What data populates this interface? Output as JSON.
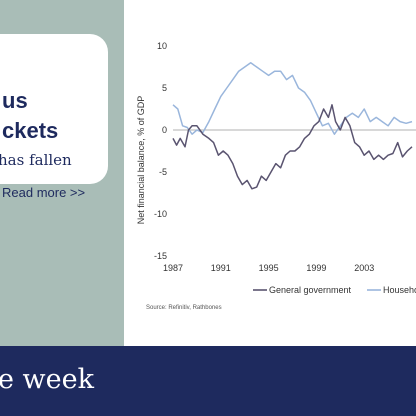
{
  "card": {
    "line1": "us",
    "line2": "ckets",
    "line3": "has fallen",
    "read_more": "Read more >>"
  },
  "banner": {
    "title": "e week"
  },
  "source": "Source: Refinitiv, Rathbones",
  "colors": {
    "background": "#a9bdb7",
    "navy": "#1e2a5e",
    "government": "#5a5470",
    "households": "#9ab6dc"
  },
  "chart_data": {
    "type": "line",
    "title": "",
    "xlabel": "",
    "ylabel": "Net financial balance, % of GDP",
    "ylim": [
      -15,
      10
    ],
    "xlim": [
      1987,
      2008
    ],
    "yticks": [
      10,
      5,
      0,
      -5,
      -10,
      -15
    ],
    "xticks": [
      1987,
      1991,
      1995,
      1999,
      2003
    ],
    "grid": false,
    "legend_position": "bottom",
    "series": [
      {
        "name": "General government",
        "color": "#5a5470",
        "x": [
          1987,
          1987.3,
          1987.6,
          1988,
          1988.3,
          1988.6,
          1989,
          1989.5,
          1990,
          1990.4,
          1990.8,
          1991.2,
          1991.6,
          1992,
          1992.4,
          1992.8,
          1993.2,
          1993.6,
          1994,
          1994.4,
          1994.8,
          1995.2,
          1995.6,
          1996,
          1996.4,
          1996.8,
          1997.2,
          1997.6,
          1998,
          1998.4,
          1998.8,
          1999.2,
          1999.6,
          2000,
          2000.3,
          2000.6,
          2001,
          2001.4,
          2001.8,
          2002.2,
          2002.6,
          2003,
          2003.4,
          2003.8,
          2004.2,
          2004.6,
          2005,
          2005.4,
          2005.8,
          2006.2,
          2006.6,
          2007
        ],
        "y": [
          -1,
          -1.8,
          -1,
          -2,
          0,
          0.5,
          0.5,
          -0.5,
          -1,
          -1.5,
          -3,
          -2.5,
          -3,
          -4,
          -5.5,
          -6.5,
          -6,
          -7,
          -6.8,
          -5.5,
          -6,
          -5,
          -4,
          -4.5,
          -3,
          -2.5,
          -2.5,
          -2,
          -1,
          -0.5,
          0.5,
          1,
          2.5,
          1.5,
          3,
          1,
          0,
          1.5,
          0.5,
          -1.5,
          -2,
          -3,
          -2.5,
          -3.5,
          -3,
          -3.5,
          -3,
          -2.8,
          -1.5,
          -3.2,
          -2.5,
          -2
        ]
      },
      {
        "name": "Households",
        "color": "#9ab6dc",
        "x": [
          1987,
          1987.4,
          1987.8,
          1988.2,
          1988.6,
          1989,
          1989.5,
          1990,
          1990.5,
          1991,
          1991.5,
          1992,
          1992.5,
          1993,
          1993.5,
          1994,
          1994.5,
          1995,
          1995.5,
          1996,
          1996.5,
          1997,
          1997.5,
          1998,
          1998.5,
          1999,
          1999.5,
          2000,
          2000.5,
          2001,
          2001.5,
          2002,
          2002.5,
          2003,
          2003.5,
          2004,
          2004.5,
          2005,
          2005.5,
          2006,
          2006.5,
          2007
        ],
        "y": [
          3,
          2.5,
          0.5,
          0.3,
          -0.5,
          0,
          -0.3,
          1,
          2.5,
          4,
          5,
          6,
          7,
          7.5,
          8,
          7.5,
          7,
          6.5,
          7,
          7,
          6,
          6.5,
          5,
          4.5,
          3.5,
          2,
          0.5,
          0.8,
          -0.5,
          0.5,
          1.5,
          2,
          1.5,
          2.5,
          1,
          1.5,
          1,
          0.5,
          1.5,
          1,
          0.8,
          1
        ]
      }
    ]
  }
}
